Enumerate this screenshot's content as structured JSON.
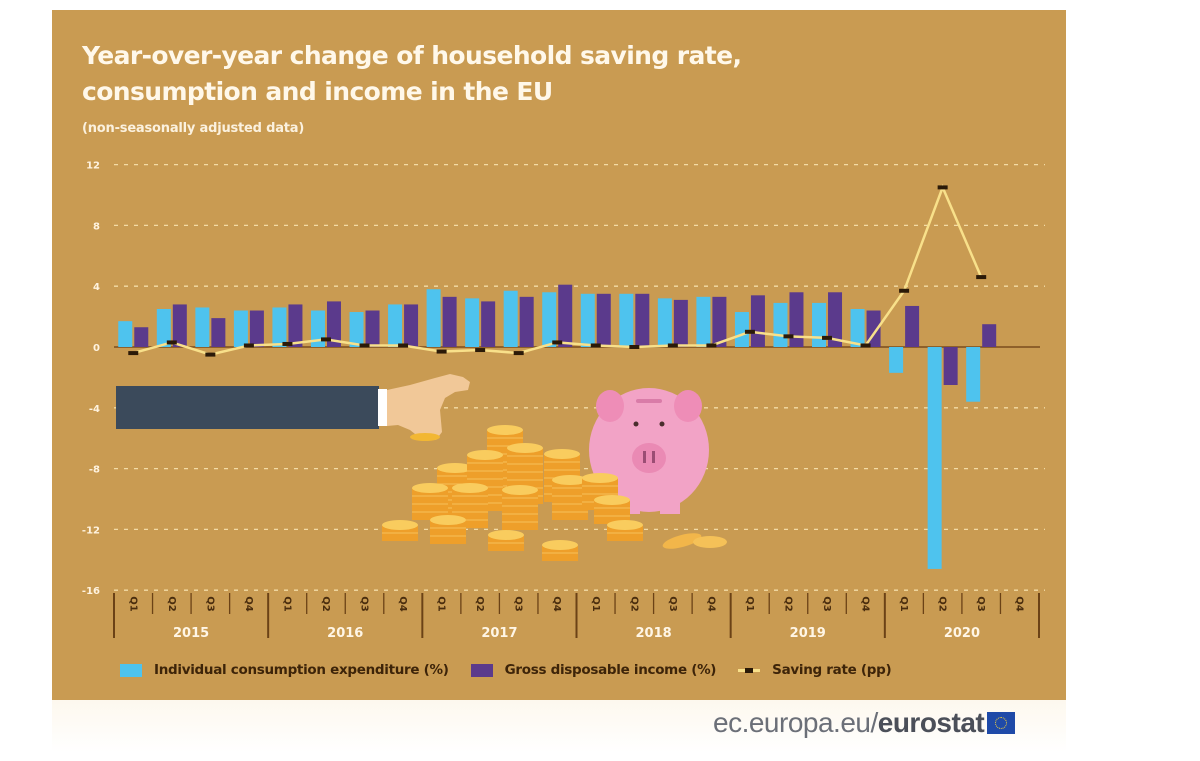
{
  "title_line1": "Year-over-year change of household saving rate,",
  "title_line2": "consumption and income in the EU",
  "subtitle": "(non-seasonally adjusted data)",
  "legend": {
    "consumption": "Individual consumption expenditure (%)",
    "income": "Gross disposable income (%)",
    "saving": "Saving rate (pp)"
  },
  "source": {
    "prefix": "ec.europa.eu/",
    "brand": "eurostat",
    "flag_icon": "eu-flag-icon"
  },
  "colors": {
    "background": "#C99B52",
    "consumption": "#4EC3EE",
    "income": "#5B3A8C",
    "saving_line": "#F8E08A",
    "saving_marker": "#2B1A08"
  },
  "illustration": {
    "elements": [
      "arm-with-sleeve",
      "hand-holding-coin",
      "coin-stacks",
      "piggy-bank"
    ]
  },
  "chart_data": {
    "type": "bar",
    "title": "Year-over-year change of household saving rate, consumption and income in the EU",
    "subtitle": "(non-seasonally adjusted data)",
    "xlabel": "",
    "ylabel": "",
    "ylim": [
      -16,
      12
    ],
    "yticks": [
      12,
      8,
      4,
      0,
      -4,
      -8,
      -12,
      -16
    ],
    "ytick_labels": [
      "12",
      "8",
      "4",
      "0",
      "-4",
      "-8",
      "-12",
      "-16"
    ],
    "grid": true,
    "legend_position": "bottom",
    "years": [
      "2015",
      "2016",
      "2017",
      "2018",
      "2019",
      "2020"
    ],
    "quarter_labels": [
      "Q1",
      "Q2",
      "Q3",
      "Q4"
    ],
    "categories": [
      "2015 Q1",
      "2015 Q2",
      "2015 Q3",
      "2015 Q4",
      "2016 Q1",
      "2016 Q2",
      "2016 Q3",
      "2016 Q4",
      "2017 Q1",
      "2017 Q2",
      "2017 Q3",
      "2017 Q4",
      "2018 Q1",
      "2018 Q2",
      "2018 Q3",
      "2018 Q4",
      "2019 Q1",
      "2019 Q2",
      "2019 Q3",
      "2019 Q4",
      "2020 Q1",
      "2020 Q2",
      "2020 Q3",
      "2020 Q4"
    ],
    "series": [
      {
        "name": "Individual consumption expenditure (%)",
        "type": "bar",
        "values": [
          1.7,
          2.5,
          2.6,
          2.4,
          2.6,
          2.4,
          2.3,
          2.8,
          3.8,
          3.2,
          3.7,
          3.6,
          3.5,
          3.5,
          3.2,
          3.3,
          2.3,
          2.9,
          2.9,
          2.5,
          -1.7,
          -14.6,
          -3.6,
          null
        ]
      },
      {
        "name": "Gross disposable income (%)",
        "type": "bar",
        "values": [
          1.3,
          2.8,
          1.9,
          2.4,
          2.8,
          3.0,
          2.4,
          2.8,
          3.3,
          3.0,
          3.3,
          4.1,
          3.5,
          3.5,
          3.1,
          3.3,
          3.4,
          3.6,
          3.6,
          2.4,
          2.7,
          -2.5,
          1.5,
          null
        ]
      },
      {
        "name": "Saving rate (pp)",
        "type": "line",
        "values": [
          -0.4,
          0.3,
          -0.5,
          0.1,
          0.2,
          0.5,
          0.1,
          0.1,
          -0.3,
          -0.2,
          -0.4,
          0.3,
          0.1,
          0.0,
          0.1,
          0.1,
          1.0,
          0.7,
          0.6,
          0.1,
          3.7,
          10.5,
          4.6,
          null
        ]
      }
    ]
  }
}
